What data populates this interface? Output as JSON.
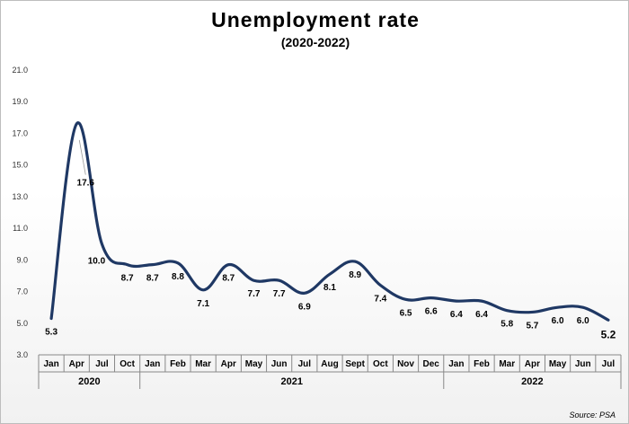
{
  "title": "Unemployment rate",
  "subtitle": "(2020-2022)",
  "source": "Source: PSA",
  "chart_data": {
    "type": "line",
    "title": "Unemployment rate",
    "subtitle": "(2020-2022)",
    "categories": [
      "Jan",
      "Apr",
      "Jul",
      "Oct",
      "Jan",
      "Feb",
      "Mar",
      "Apr",
      "May",
      "Jun",
      "Jul",
      "Aug",
      "Sept",
      "Oct",
      "Nov",
      "Dec",
      "Jan",
      "Feb",
      "Mar",
      "Apr",
      "May",
      "Jun",
      "Jul"
    ],
    "years": [
      {
        "label": "2020",
        "count": 4
      },
      {
        "label": "2021",
        "count": 12
      },
      {
        "label": "2022",
        "count": 7
      }
    ],
    "series": [
      {
        "values": [
          5.3,
          17.6,
          10.0,
          8.7,
          8.7,
          8.8,
          7.1,
          8.7,
          7.7,
          7.7,
          6.9,
          8.1,
          8.9,
          7.4,
          6.5,
          6.6,
          6.4,
          6.4,
          5.8,
          5.7,
          6.0,
          6.0,
          5.2
        ],
        "labels": [
          "5.3",
          "17.6",
          "10.0",
          "8.7",
          "8.7",
          "8.8",
          "7.1",
          "8.7",
          "7.7",
          "7.7",
          "6.9",
          "8.1",
          "8.9",
          "7.4",
          "6.5",
          "6.6",
          "6.4",
          "6.4",
          "5.8",
          "5.7",
          "6.0",
          "6.0",
          "5.2"
        ],
        "color": "#1f3864"
      }
    ],
    "yticks": [
      "3.0",
      "5.0",
      "7.0",
      "9.0",
      "11.0",
      "13.0",
      "15.0",
      "17.0",
      "19.0",
      "21.0"
    ],
    "ylim": [
      3,
      21
    ],
    "grid": false,
    "legend": "none",
    "line_style": "smooth"
  }
}
